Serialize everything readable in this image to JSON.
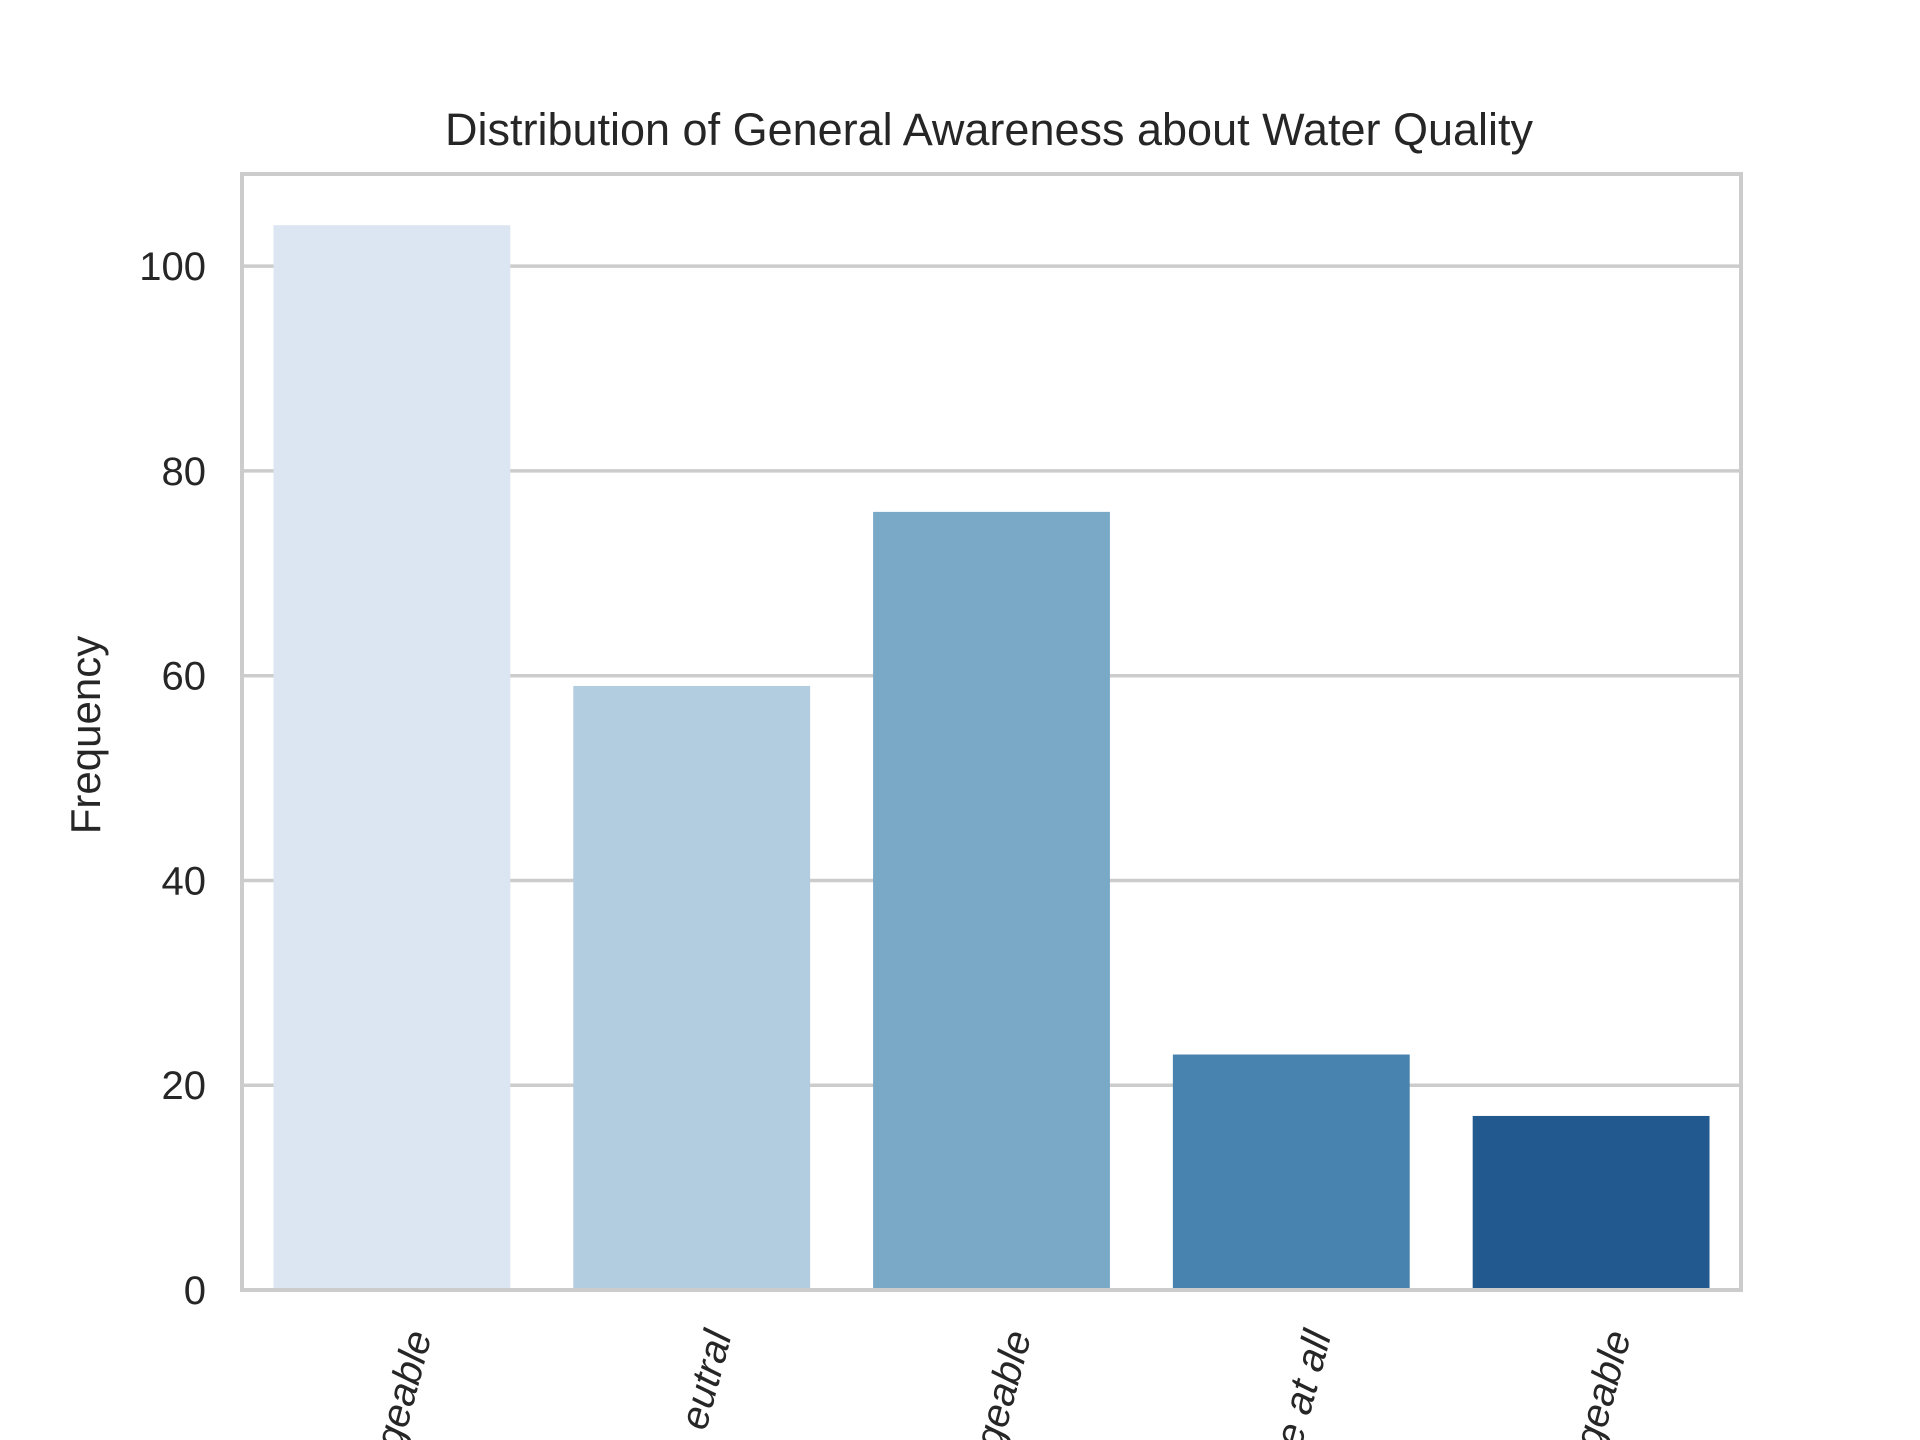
{
  "chart_data": {
    "type": "bar",
    "title": "Distribution of General Awareness about Water Quality",
    "xlabel": "",
    "ylabel": "Frequency",
    "categories": [
      "...geable",
      "...eutral",
      "...geable",
      "...e at all",
      "...geable"
    ],
    "values": [
      104,
      59,
      76,
      23,
      17
    ],
    "colors": [
      "#dbe6f2",
      "#b3cde0",
      "#7aa9c7",
      "#4883b0",
      "#225a90"
    ],
    "ylim": [
      0,
      109
    ],
    "yticks": [
      0,
      20,
      40,
      60,
      80,
      100
    ],
    "grid": true,
    "tick_rotation": -75,
    "categories_note": "tick labels are cropped at the image bottom; visible portions only"
  }
}
